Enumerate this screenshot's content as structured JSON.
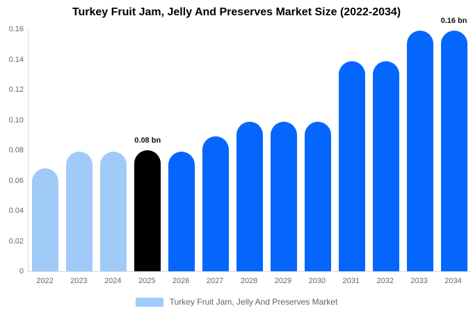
{
  "title": "Turkey Fruit Jam, Jelly And Preserves Market Size (2022-2034)",
  "chart_data": {
    "type": "bar",
    "title": "Turkey Fruit Jam, Jelly And Preserves Market Size (2022-2034)",
    "categories": [
      "2022",
      "2023",
      "2024",
      "2025",
      "2026",
      "2027",
      "2028",
      "2029",
      "2030",
      "2031",
      "2032",
      "2033",
      "2034"
    ],
    "values": [
      0.068,
      0.079,
      0.079,
      0.08,
      0.079,
      0.089,
      0.099,
      0.099,
      0.099,
      0.139,
      0.139,
      0.159,
      0.159
    ],
    "unit": "bn",
    "xlabel": "",
    "ylabel": "",
    "ylim": [
      0,
      0.16
    ],
    "yticks": [
      "0.16",
      "0.14",
      "0.12",
      "0.10",
      "0.08",
      "0.06",
      "0.04",
      "0.02",
      "0"
    ],
    "grid": false,
    "bar_roles": [
      "past",
      "past",
      "past",
      "current",
      "forecast",
      "forecast",
      "forecast",
      "forecast",
      "forecast",
      "forecast",
      "forecast",
      "forecast",
      "forecast"
    ],
    "color_map": {
      "past": "#A0CBF9",
      "current": "#000000",
      "forecast": "#0566FD"
    },
    "annotations": [
      {
        "index": 3,
        "text": "0.08 bn"
      },
      {
        "index": 12,
        "text": "0.16 bn"
      }
    ],
    "legend_position": "bottom",
    "legend": [
      {
        "label": "Turkey Fruit Jam, Jelly And Preserves Market",
        "color": "#A0CBF9"
      }
    ]
  },
  "colors": {
    "background": "#ffffff",
    "axis_line": "#d9d9d9",
    "axis_text": "#666666",
    "annotation_text": "#111111",
    "legend_text": "#5f6368",
    "title_text": "#000000"
  }
}
